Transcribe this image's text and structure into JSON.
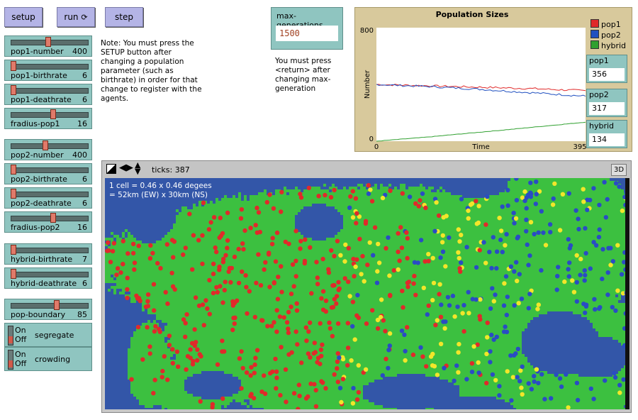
{
  "buttons": {
    "setup": "setup",
    "run": "run",
    "step": "step"
  },
  "sliders": [
    {
      "label": "pop1-number",
      "value": "400",
      "pos": 0.48
    },
    {
      "label": "pop1-birthrate",
      "value": "6",
      "pos": 0.0
    },
    {
      "label": "pop1-deathrate",
      "value": "6",
      "pos": 0.0
    },
    {
      "label": "fradius-pop1",
      "value": "16",
      "pos": 0.55
    },
    {
      "label": "pop2-number",
      "value": "400",
      "pos": 0.44
    },
    {
      "label": "pop2-birthrate",
      "value": "6",
      "pos": 0.0
    },
    {
      "label": "pop2-deathrate",
      "value": "6",
      "pos": 0.0
    },
    {
      "label": "fradius-pop2",
      "value": "16",
      "pos": 0.55
    },
    {
      "label": "hybrid-birthrate",
      "value": "7",
      "pos": 0.0
    },
    {
      "label": "hybrid-deathrate",
      "value": "6",
      "pos": 0.0
    },
    {
      "label": "pop-boundary",
      "value": "85",
      "pos": 0.6
    }
  ],
  "switches": [
    {
      "label": "segregate",
      "on": "On",
      "off": "Off"
    },
    {
      "label": "crowding",
      "on": "On",
      "off": "Off"
    }
  ],
  "note": "Note: You must press the SETUP button after changing a population parameter (such as birthrate) in order for that change to register with the agents.",
  "maxgen": {
    "label": "max-generations",
    "value": "1500",
    "note": "You must press <return> after changing max-generation"
  },
  "plot": {
    "title": "Population Sizes",
    "ylabel": "Number",
    "xlabel": "Time",
    "ymax": "800",
    "ymin": "0",
    "xmin": "0",
    "xmax": "395",
    "legend": [
      {
        "name": "pop1",
        "color": "#e02a2a"
      },
      {
        "name": "pop2",
        "color": "#2050c0"
      },
      {
        "name": "hybrid",
        "color": "#30a030"
      }
    ]
  },
  "monitors": [
    {
      "label": "pop1",
      "value": "356"
    },
    {
      "label": "pop2",
      "value": "317"
    },
    {
      "label": "hybrid",
      "value": "134"
    }
  ],
  "chart_data": {
    "type": "line",
    "title": "Population Sizes",
    "xlabel": "Time",
    "ylabel": "Number",
    "xlim": [
      0,
      395
    ],
    "ylim": [
      0,
      800
    ],
    "x": [
      0,
      50,
      100,
      150,
      200,
      250,
      300,
      350,
      395
    ],
    "series": [
      {
        "name": "pop1",
        "values": [
          400,
          395,
          390,
          385,
          380,
          375,
          370,
          362,
          356
        ]
      },
      {
        "name": "pop2",
        "values": [
          400,
          392,
          385,
          375,
          365,
          352,
          340,
          328,
          317
        ]
      },
      {
        "name": "hybrid",
        "values": [
          0,
          15,
          30,
          48,
          65,
          82,
          100,
          118,
          134
        ]
      }
    ]
  },
  "view": {
    "ticks": "ticks: 387",
    "button3d": "3D",
    "caption1": "1 cell = 0.46 x 0.46 degees",
    "caption2": "= 52km (EW) x 30km (NS)"
  },
  "colors": {
    "land": "#3cc040",
    "water": "#3356a8",
    "pop1": "#e02a2a",
    "pop2": "#2a4cc4",
    "hybrid": "#f2e62a"
  }
}
